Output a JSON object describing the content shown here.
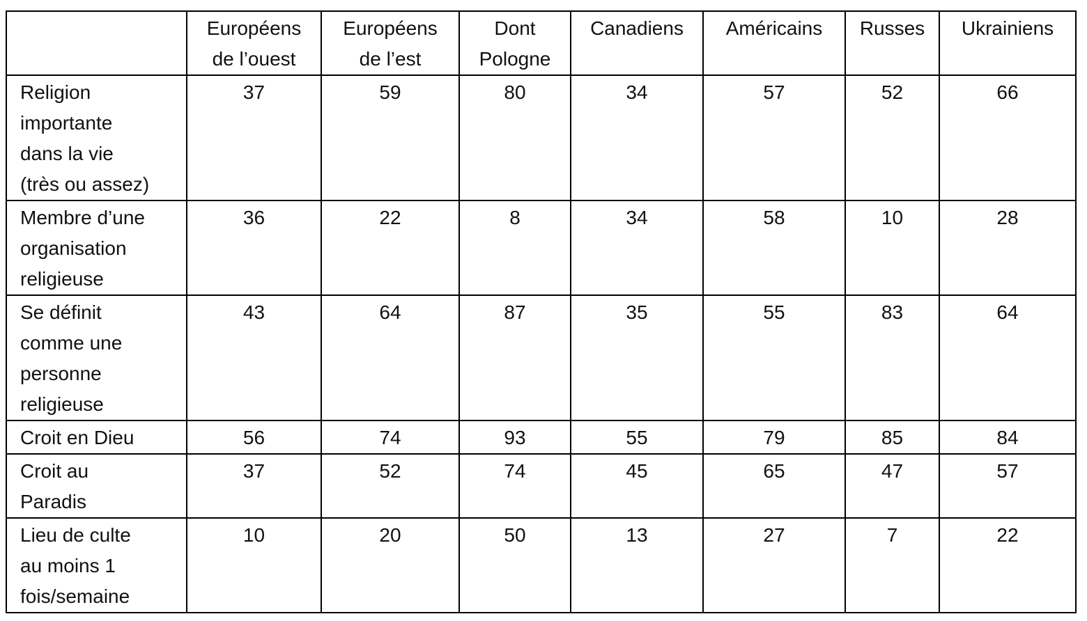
{
  "table": {
    "header": [
      "",
      "Européens\nde l’ouest",
      "Européens\nde l’est",
      "Dont\nPologne",
      "Canadiens",
      "Américains",
      "Russes",
      "Ukrainiens"
    ],
    "rows": [
      [
        "Religion\nimportante\ndans la vie\n(très ou assez)",
        37,
        59,
        80,
        34,
        57,
        52,
        66
      ],
      [
        "Membre d’une\norganisation\nreligieuse",
        36,
        22,
        8,
        34,
        58,
        10,
        28
      ],
      [
        "Se définit\ncomme une\npersonne\nreligieuse",
        43,
        64,
        87,
        35,
        55,
        83,
        64
      ],
      [
        "Croit en Dieu",
        56,
        74,
        93,
        55,
        79,
        85,
        84
      ],
      [
        "Croit au\nParadis",
        37,
        52,
        74,
        45,
        65,
        47,
        57
      ],
      [
        "Lieu de culte\nau moins 1\nfois/semaine",
        10,
        20,
        50,
        13,
        27,
        7,
        22
      ]
    ]
  }
}
